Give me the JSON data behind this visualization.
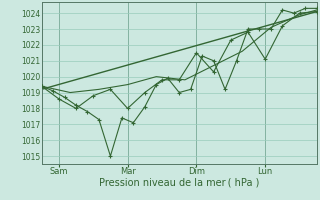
{
  "xlabel": "Pression niveau de la mer ( hPa )",
  "bg_color": "#cce8e0",
  "grid_color": "#99ccbb",
  "line_color": "#336633",
  "yticks": [
    1015,
    1016,
    1017,
    1018,
    1019,
    1020,
    1021,
    1022,
    1023,
    1024
  ],
  "ylim": [
    1014.5,
    1024.7
  ],
  "xlim": [
    0,
    96
  ],
  "xtick_positions": [
    6,
    30,
    54,
    78
  ],
  "xtick_labels": [
    "Sam",
    "Mar",
    "Dim",
    "Lun"
  ],
  "vline_positions": [
    6,
    30,
    54,
    78
  ],
  "series1_x": [
    0,
    4,
    8,
    12,
    16,
    20,
    24,
    28,
    32,
    36,
    40,
    44,
    48,
    52,
    56,
    60,
    64,
    68,
    72,
    76,
    80,
    84,
    88,
    92,
    96
  ],
  "series1_y": [
    1019.4,
    1019.1,
    1018.7,
    1018.2,
    1017.8,
    1017.3,
    1015.0,
    1017.4,
    1017.1,
    1018.1,
    1019.5,
    1019.9,
    1019.0,
    1019.2,
    1021.3,
    1021.0,
    1019.2,
    1021.0,
    1023.0,
    1023.0,
    1023.0,
    1024.2,
    1024.0,
    1024.3,
    1024.3
  ],
  "series2_x": [
    0,
    6,
    12,
    18,
    24,
    30,
    36,
    42,
    48,
    54,
    60,
    66,
    72,
    78,
    84,
    90,
    96
  ],
  "series2_y": [
    1019.4,
    1018.6,
    1018.0,
    1018.8,
    1019.2,
    1018.0,
    1019.0,
    1019.8,
    1019.8,
    1021.5,
    1020.3,
    1022.3,
    1022.8,
    1021.1,
    1023.2,
    1024.0,
    1024.1
  ],
  "series3_x": [
    0,
    10,
    20,
    30,
    40,
    50,
    60,
    70,
    80,
    90,
    96
  ],
  "series3_y": [
    1019.4,
    1019.0,
    1019.2,
    1019.5,
    1020.0,
    1019.8,
    1020.7,
    1021.6,
    1023.1,
    1023.9,
    1024.2
  ],
  "trend_x": [
    0,
    96
  ],
  "trend_y": [
    1019.2,
    1024.1
  ]
}
